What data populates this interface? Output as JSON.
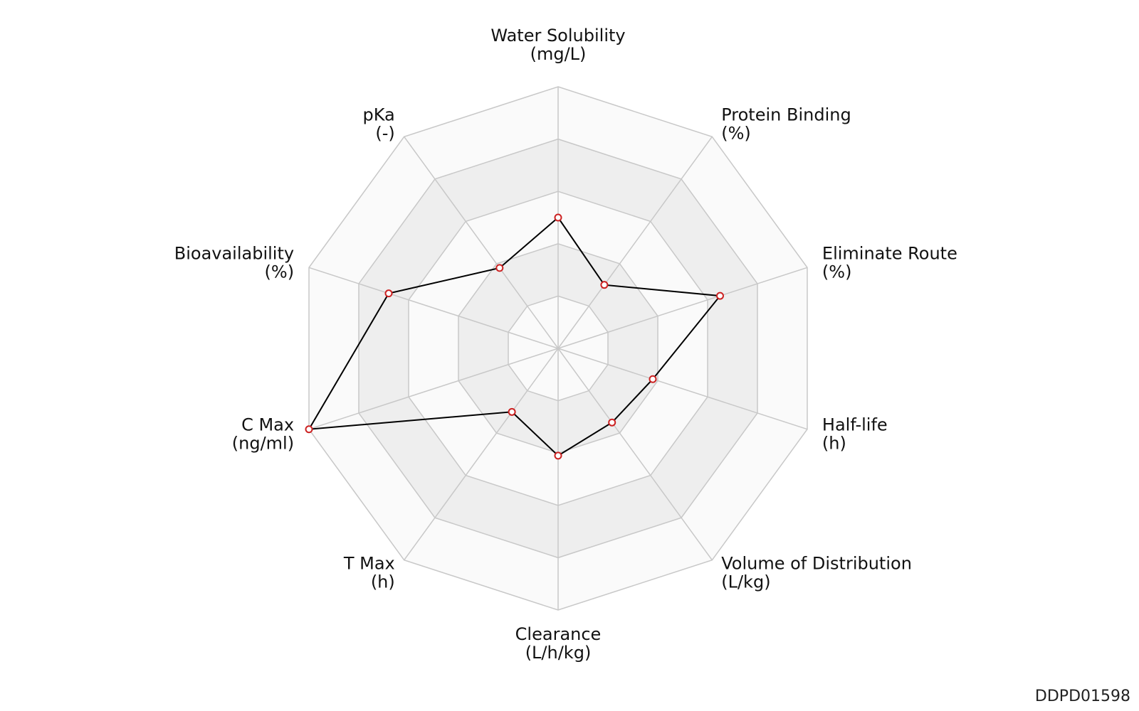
{
  "chart_data": {
    "type": "radar",
    "axes": [
      {
        "name": "Water Solubility",
        "unit": "(mg/L)",
        "value": 0.5
      },
      {
        "name": "Protein Binding",
        "unit": "(%)",
        "value": 0.3
      },
      {
        "name": "Eliminate Route",
        "unit": "(%)",
        "value": 0.65
      },
      {
        "name": "Half-life",
        "unit": "(h)",
        "value": 0.38
      },
      {
        "name": "Volume of Distribution",
        "unit": "(L/kg)",
        "value": 0.35
      },
      {
        "name": "Clearance",
        "unit": "(L/h/kg)",
        "value": 0.41
      },
      {
        "name": "T Max",
        "unit": "(h)",
        "value": 0.3
      },
      {
        "name": "C Max",
        "unit": "(ng/ml)",
        "value": 1.0
      },
      {
        "name": "Bioavailability",
        "unit": "(%)",
        "value": 0.68
      },
      {
        "name": "pKa",
        "unit": "(-)",
        "value": 0.38
      }
    ],
    "rings": 5,
    "range": [
      0,
      1
    ],
    "colors": {
      "line": "#000000",
      "marker": "#cc2222",
      "grid": "#c8c8c8",
      "band_light": "#fafafa",
      "band_dark": "#eeeeee"
    }
  },
  "footer": {
    "id": "DDPD01598"
  }
}
